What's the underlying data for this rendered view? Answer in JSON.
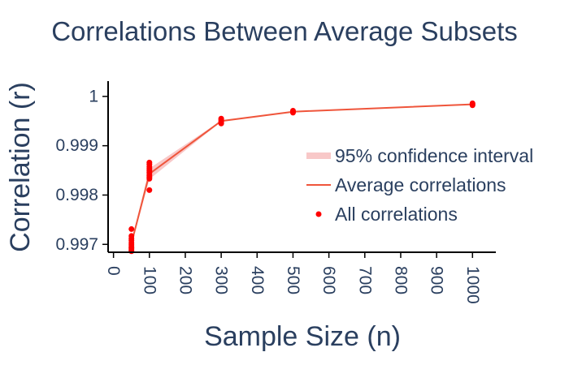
{
  "chart_data": {
    "type": "line",
    "title": "Correlations Between Average Subsets",
    "xlabel": "Sample Size (n)",
    "ylabel": "Correlation (r)",
    "xlim": [
      -15,
      1065
    ],
    "ylim": [
      0.99684,
      1.00031
    ],
    "x_ticks": [
      0,
      100,
      200,
      300,
      400,
      500,
      600,
      700,
      800,
      900,
      1000
    ],
    "x_tick_labels": [
      "0",
      "100",
      "200",
      "300",
      "400",
      "500",
      "600",
      "700",
      "800",
      "900",
      "1000"
    ],
    "y_ticks": [
      0.997,
      0.998,
      0.999,
      1.0
    ],
    "y_tick_labels": [
      "0.997",
      "0.998",
      "0.999",
      "1"
    ],
    "legend_position": "right",
    "series": [
      {
        "name": "95% confidence interval",
        "kind": "band",
        "x": [
          50,
          100,
          300,
          500,
          1000
        ],
        "lower": [
          0.99698,
          0.99832,
          0.99949,
          0.99969,
          0.99983
        ],
        "upper": [
          0.99706,
          0.99854,
          0.99951,
          0.9997,
          0.99984
        ],
        "color": "#f8c8c8"
      },
      {
        "name": "Average correlations",
        "kind": "line",
        "x": [
          50,
          100,
          300,
          500,
          1000
        ],
        "y": [
          0.99702,
          0.99843,
          0.9995,
          0.99969,
          0.99984
        ],
        "color": "#ef553b"
      },
      {
        "name": "All correlations",
        "kind": "points",
        "points": [
          [
            50,
            0.99731
          ],
          [
            50,
            0.99717
          ],
          [
            50,
            0.99712
          ],
          [
            50,
            0.99708
          ],
          [
            50,
            0.99703
          ],
          [
            50,
            0.99699
          ],
          [
            50,
            0.99695
          ],
          [
            50,
            0.99692
          ],
          [
            50,
            0.99689
          ],
          [
            50,
            0.99686
          ],
          [
            100,
            0.99866
          ],
          [
            100,
            0.99862
          ],
          [
            100,
            0.99857
          ],
          [
            100,
            0.99853
          ],
          [
            100,
            0.99849
          ],
          [
            100,
            0.99845
          ],
          [
            100,
            0.9984
          ],
          [
            100,
            0.99836
          ],
          [
            100,
            0.99833
          ],
          [
            100,
            0.9981
          ],
          [
            300,
            0.99955
          ],
          [
            300,
            0.99953
          ],
          [
            300,
            0.9995
          ],
          [
            300,
            0.99947
          ],
          [
            300,
            0.99945
          ],
          [
            500,
            0.99971
          ],
          [
            500,
            0.99969
          ],
          [
            500,
            0.99967
          ],
          [
            1000,
            0.99986
          ],
          [
            1000,
            0.99984
          ],
          [
            1000,
            0.99982
          ]
        ],
        "color": "#ff0000"
      }
    ]
  }
}
